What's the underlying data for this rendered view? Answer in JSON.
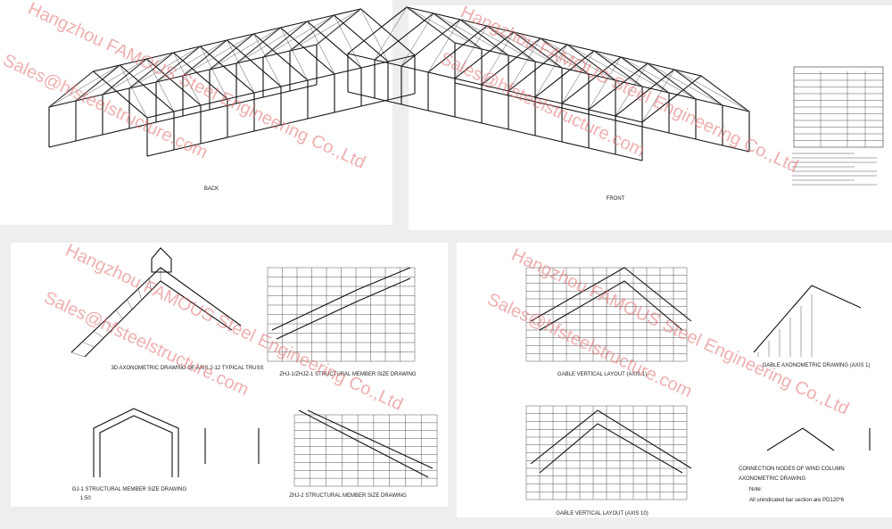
{
  "watermark": {
    "company": "Hangzhou FAMOUS Steel Engineering Co.,Ltd",
    "email": "Sales@hfsteelstructure.com"
  },
  "panels": [
    {
      "labels": [
        "BACK"
      ]
    },
    {
      "labels": [
        "FRONT"
      ]
    },
    {
      "labels": [
        "3D AXONOMETRIC DRAWING OF AXIS 2-12 TYPICAL TRUSS",
        "ZHJ-1/ZHJZ-1 STRUCTURAL MEMBER SIZE DRAWING",
        "GJ-1 STRUCTURAL MEMBER SIZE DRAWING",
        "1:50",
        "ZHJ-2 STRUCTURAL MEMBER SIZE DRAWING"
      ]
    },
    {
      "labels": [
        "GABLE VERTICAL LAYOUT (AXIS 1)",
        "GABLE AXONOMETRIC DRAWING (AXIS 1)",
        "GABLE VERTICAL LAYOUT (AXIS 10)",
        "CONNECTION NODES OF WIND COLUMN",
        "AXONOMETRIC DRAWING",
        "Note:",
        "All unindicated bar section are PD120*6"
      ]
    }
  ]
}
